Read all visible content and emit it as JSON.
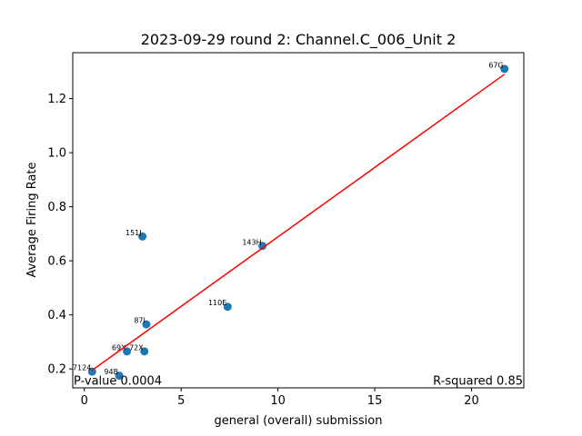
{
  "chart_data": {
    "type": "scatter",
    "title": "2023-09-29 round 2: Channel.C_006_Unit 2",
    "xlabel": "general (overall) submission",
    "ylabel": "Average Firing Rate",
    "xlim": [
      -0.6,
      22.7
    ],
    "ylim": [
      0.13,
      1.37
    ],
    "xticks": [
      0,
      5,
      10,
      15,
      20
    ],
    "xtick_labels": [
      "0",
      "5",
      "10",
      "15",
      "20"
    ],
    "yticks": [
      0.2,
      0.4,
      0.6,
      0.8,
      1.0,
      1.2
    ],
    "ytick_labels": [
      "0.2",
      "0.4",
      "0.6",
      "0.8",
      "1.0",
      "1.2"
    ],
    "grid": false,
    "points": [
      {
        "label": "67G",
        "x": 21.7,
        "y": 1.31
      },
      {
        "label": "151J",
        "x": 3.0,
        "y": 0.69
      },
      {
        "label": "143H",
        "x": 9.2,
        "y": 0.655
      },
      {
        "label": "110E",
        "x": 7.4,
        "y": 0.43
      },
      {
        "label": "87I",
        "x": 3.2,
        "y": 0.365
      },
      {
        "label": "69X",
        "x": 2.2,
        "y": 0.265
      },
      {
        "label": "72X",
        "x": 3.1,
        "y": 0.265
      },
      {
        "label": "7124",
        "x": 0.4,
        "y": 0.19
      },
      {
        "label": "94B",
        "x": 1.8,
        "y": 0.175
      }
    ],
    "fit_line": {
      "x": [
        0.4,
        21.7
      ],
      "y": [
        0.195,
        1.29
      ]
    },
    "annotations": {
      "p_value": "P-value 0.0004",
      "r_squared": "R-squared 0.85"
    },
    "colors": {
      "points": "#1f77b4",
      "fit_line": "#ff0000"
    }
  }
}
